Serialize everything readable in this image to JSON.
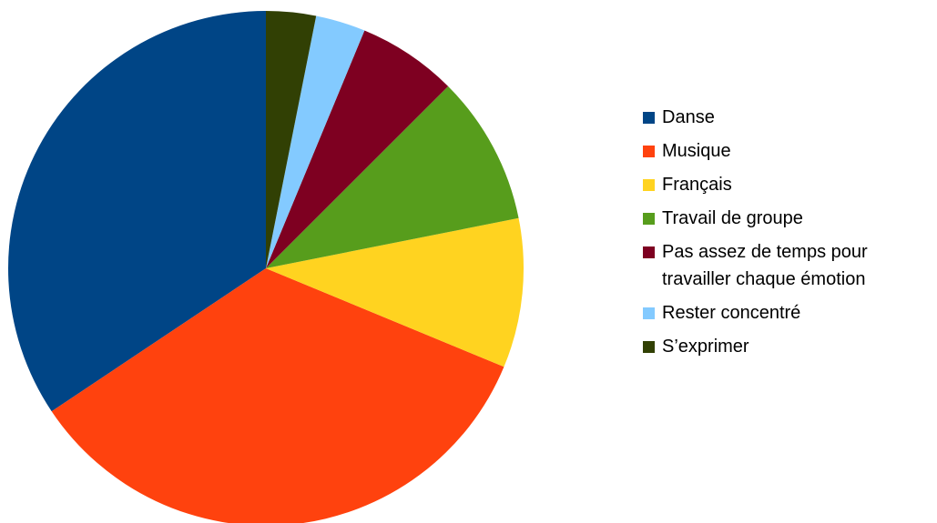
{
  "chart_data": {
    "type": "pie",
    "categories": [
      "Danse",
      "Musique",
      "Français",
      "Travail de groupe",
      "Pas assez de temps pour travailler chaque émotion",
      "Rester concentré",
      "S’exprimer"
    ],
    "values": [
      11,
      11,
      3,
      3,
      2,
      1,
      1
    ],
    "colors": [
      "#004586",
      "#ff420e",
      "#ffd320",
      "#579d1c",
      "#7e0021",
      "#83caff",
      "#314004"
    ],
    "legend": "right"
  }
}
